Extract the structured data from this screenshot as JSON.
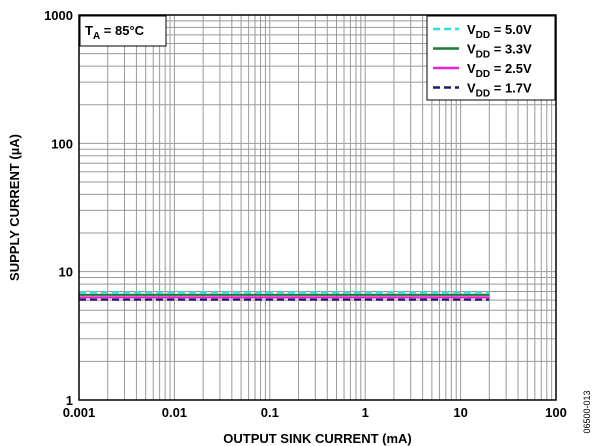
{
  "chart_data": {
    "type": "line",
    "xlabel": "OUTPUT SINK CURRENT (mA)",
    "ylabel": "SUPPLY CURRENT (µA)",
    "x_scale": "log",
    "y_scale": "log",
    "xlim": [
      0.001,
      100
    ],
    "ylim": [
      1,
      1000
    ],
    "x_ticks": [
      "0.001",
      "0.01",
      "0.1",
      "1",
      "10",
      "100"
    ],
    "y_ticks": [
      "1",
      "10",
      "100",
      "1000"
    ],
    "grid": true,
    "legend_position": "top-right",
    "annotation": {
      "main": "T",
      "sub": "A",
      "rest": " = 85°C"
    },
    "figure_id": "06500-013",
    "series": [
      {
        "name_main": "V",
        "name_sub": "DD",
        "name_rest": " = 5.0V",
        "color": "#33dddd",
        "dash": "dashed",
        "x": [
          0.001,
          20
        ],
        "y": [
          6.9,
          6.9
        ]
      },
      {
        "name_main": "V",
        "name_sub": "DD",
        "name_rest": " = 3.3V",
        "color": "#1a7a3a",
        "dash": "solid",
        "x": [
          0.001,
          20
        ],
        "y": [
          6.6,
          6.6
        ]
      },
      {
        "name_main": "V",
        "name_sub": "DD",
        "name_rest": " = 2.5V",
        "color": "#ee22cc",
        "dash": "solid",
        "x": [
          0.001,
          20
        ],
        "y": [
          6.3,
          6.3
        ]
      },
      {
        "name_main": "V",
        "name_sub": "DD",
        "name_rest": " = 1.7V",
        "color": "#1a1a6e",
        "dash": "dashed",
        "x": [
          0.001,
          20
        ],
        "y": [
          6.05,
          6.05
        ]
      }
    ]
  }
}
